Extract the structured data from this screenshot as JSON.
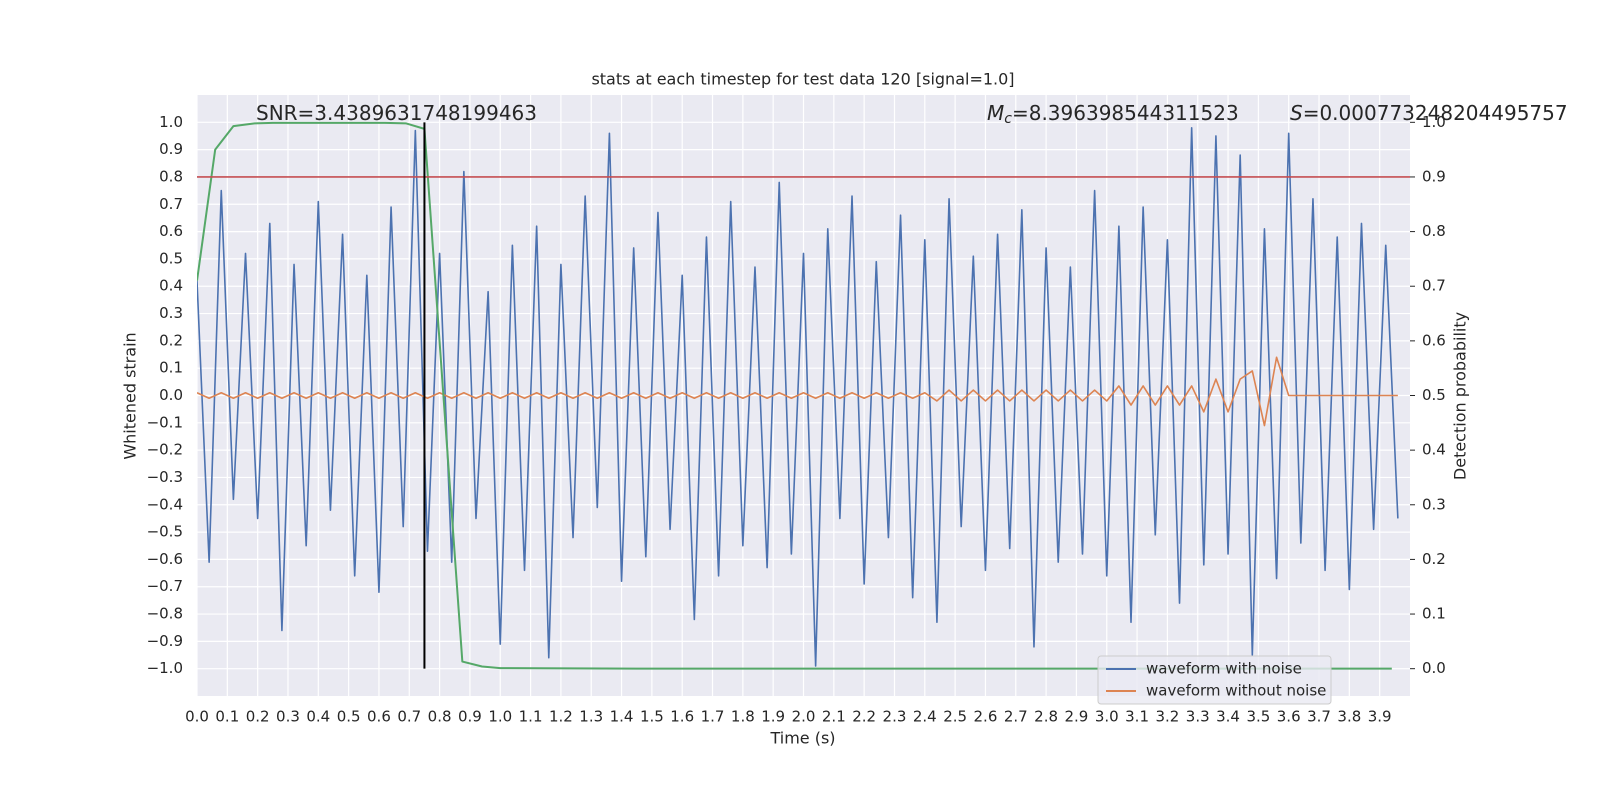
{
  "chart_data": {
    "type": "line",
    "title": "stats at each timestep for test data 120 [signal=1.0]",
    "x_label": "Time (s)",
    "y_label": "Whitened strain",
    "y2_label": "Detection probability",
    "annotations": [
      {
        "text": "SNR=3.4389631748199463"
      },
      {
        "symbol": "M",
        "subscript": "c",
        "text": "=8.396398544311523"
      },
      {
        "symbol": "S",
        "text": "=0.000773248204495757"
      }
    ],
    "x": [
      0,
      0.04,
      0.08,
      0.12,
      0.16,
      0.2,
      0.24,
      0.28,
      0.32,
      0.36,
      0.4,
      0.44,
      0.48,
      0.52,
      0.56,
      0.6,
      0.64,
      0.68,
      0.72,
      0.76,
      0.8,
      0.84,
      0.88,
      0.92,
      0.96,
      1.0,
      1.04,
      1.08,
      1.12,
      1.16,
      1.2,
      1.24,
      1.28,
      1.32,
      1.36,
      1.4,
      1.44,
      1.48,
      1.52,
      1.56,
      1.6,
      1.64,
      1.68,
      1.72,
      1.76,
      1.8,
      1.84,
      1.88,
      1.92,
      1.96,
      2.0,
      2.04,
      2.08,
      2.12,
      2.16,
      2.2,
      2.24,
      2.28,
      2.32,
      2.36,
      2.4,
      2.44,
      2.48,
      2.52,
      2.56,
      2.6,
      2.64,
      2.68,
      2.72,
      2.76,
      2.8,
      2.84,
      2.88,
      2.92,
      2.96,
      3.0,
      3.04,
      3.08,
      3.12,
      3.16,
      3.2,
      3.24,
      3.28,
      3.32,
      3.36,
      3.4,
      3.44,
      3.48,
      3.52,
      3.56,
      3.6,
      3.64,
      3.68,
      3.72,
      3.76,
      3.8,
      3.84,
      3.88,
      3.92,
      3.96
    ],
    "series": [
      {
        "name": "waveform with noise",
        "color": "#4c72b0",
        "values": [
          0.42,
          -0.61,
          0.75,
          -0.38,
          0.52,
          -0.45,
          0.63,
          -0.86,
          0.48,
          -0.55,
          0.71,
          -0.42,
          0.59,
          -0.66,
          0.44,
          -0.72,
          0.69,
          -0.48,
          0.97,
          -0.57,
          0.52,
          -0.61,
          0.82,
          -0.45,
          0.38,
          -0.91,
          0.55,
          -0.64,
          0.62,
          -0.96,
          0.48,
          -0.52,
          0.73,
          -0.41,
          0.96,
          -0.68,
          0.54,
          -0.59,
          0.67,
          -0.49,
          0.44,
          -0.82,
          0.58,
          -0.66,
          0.71,
          -0.55,
          0.47,
          -0.63,
          0.78,
          -0.58,
          0.52,
          -0.99,
          0.61,
          -0.45,
          0.73,
          -0.69,
          0.49,
          -0.52,
          0.66,
          -0.74,
          0.57,
          -0.83,
          0.72,
          -0.48,
          0.51,
          -0.64,
          0.59,
          -0.56,
          0.68,
          -0.92,
          0.54,
          -0.61,
          0.47,
          -0.58,
          0.75,
          -0.66,
          0.62,
          -0.83,
          0.69,
          -0.51,
          0.57,
          -0.76,
          0.98,
          -0.62,
          0.95,
          -0.58,
          0.88,
          -0.95,
          0.61,
          -0.67,
          0.96,
          -0.54,
          0.72,
          -0.64,
          0.58,
          -0.71,
          0.63,
          -0.49,
          0.55,
          -0.45
        ]
      },
      {
        "name": "waveform without noise",
        "color": "#dd8452",
        "values": [
          0.01,
          -0.01,
          0.01,
          -0.01,
          0.01,
          -0.01,
          0.01,
          -0.01,
          0.01,
          -0.01,
          0.01,
          -0.01,
          0.01,
          -0.01,
          0.01,
          -0.01,
          0.01,
          -0.01,
          0.01,
          -0.01,
          0.01,
          -0.01,
          0.01,
          -0.01,
          0.01,
          -0.01,
          0.01,
          -0.01,
          0.01,
          -0.01,
          0.01,
          -0.01,
          0.01,
          -0.01,
          0.01,
          -0.01,
          0.01,
          -0.01,
          0.01,
          -0.01,
          0.01,
          -0.01,
          0.01,
          -0.01,
          0.01,
          -0.01,
          0.01,
          -0.01,
          0.01,
          -0.01,
          0.01,
          -0.01,
          0.01,
          -0.01,
          0.01,
          -0.01,
          0.01,
          -0.01,
          0.01,
          -0.01,
          0.01,
          -0.02,
          0.02,
          -0.02,
          0.02,
          -0.02,
          0.02,
          -0.02,
          0.02,
          -0.02,
          0.02,
          -0.02,
          0.02,
          -0.02,
          0.02,
          -0.02,
          0.035,
          -0.035,
          0.035,
          -0.035,
          0.035,
          -0.035,
          0.035,
          -0.06,
          0.06,
          -0.06,
          0.06,
          0.09,
          -0.11,
          0.14,
          0,
          0,
          0,
          0,
          0,
          0,
          0,
          0,
          0,
          0
        ]
      },
      {
        "color": "#55a868",
        "axis": "y2",
        "x": [
          0,
          0.06,
          0.12,
          0.19,
          0.25,
          0.31,
          0.38,
          0.44,
          0.5,
          0.56,
          0.62,
          0.69,
          0.75,
          0.875,
          0.94,
          1.0,
          1.5,
          2.0,
          2.5,
          3.0,
          3.5,
          3.94
        ],
        "values": [
          0.71,
          0.95,
          0.993,
          0.998,
          0.999,
          0.999,
          0.999,
          0.999,
          0.999,
          0.999,
          0.999,
          0.998,
          0.988,
          0.013,
          0.004,
          0.001,
          0.0,
          0.0,
          0.0,
          0.0,
          0.0,
          0.0
        ]
      }
    ],
    "hline": {
      "value": 0.9,
      "axis": "y2",
      "color": "#c44e52"
    },
    "vline": {
      "x": 0.75,
      "ymin": -1.0,
      "ymax": 1.0,
      "color": "#000000"
    },
    "xlim": [
      0,
      4.0
    ],
    "ylim": [
      -1.1,
      1.1
    ],
    "y2lim": [
      -0.05,
      1.05
    ],
    "xticks": [
      {
        "value": 0,
        "label": "0.0"
      },
      {
        "value": 0.1,
        "label": "0.1"
      },
      {
        "value": 0.2,
        "label": "0.2"
      },
      {
        "value": 0.3,
        "label": "0.3"
      },
      {
        "value": 0.4,
        "label": "0.4"
      },
      {
        "value": 0.5,
        "label": "0.5"
      },
      {
        "value": 0.6,
        "label": "0.6"
      },
      {
        "value": 0.7,
        "label": "0.7"
      },
      {
        "value": 0.8,
        "label": "0.8"
      },
      {
        "value": 0.9,
        "label": "0.9"
      },
      {
        "value": 1.0,
        "label": "1.0"
      },
      {
        "value": 1.1,
        "label": "1.1"
      },
      {
        "value": 1.2,
        "label": "1.2"
      },
      {
        "value": 1.3,
        "label": "1.3"
      },
      {
        "value": 1.4,
        "label": "1.4"
      },
      {
        "value": 1.5,
        "label": "1.5"
      },
      {
        "value": 1.6,
        "label": "1.6"
      },
      {
        "value": 1.7,
        "label": "1.7"
      },
      {
        "value": 1.8,
        "label": "1.8"
      },
      {
        "value": 1.9,
        "label": "1.9"
      },
      {
        "value": 2.0,
        "label": "2.0"
      },
      {
        "value": 2.1,
        "label": "2.1"
      },
      {
        "value": 2.2,
        "label": "2.2"
      },
      {
        "value": 2.3,
        "label": "2.3"
      },
      {
        "value": 2.4,
        "label": "2.4"
      },
      {
        "value": 2.5,
        "label": "2.5"
      },
      {
        "value": 2.6,
        "label": "2.6"
      },
      {
        "value": 2.7,
        "label": "2.7"
      },
      {
        "value": 2.8,
        "label": "2.8"
      },
      {
        "value": 2.9,
        "label": "2.9"
      },
      {
        "value": 3.0,
        "label": "3.0"
      },
      {
        "value": 3.1,
        "label": "3.1"
      },
      {
        "value": 3.2,
        "label": "3.2"
      },
      {
        "value": 3.3,
        "label": "3.3"
      },
      {
        "value": 3.4,
        "label": "3.4"
      },
      {
        "value": 3.5,
        "label": "3.5"
      },
      {
        "value": 3.6,
        "label": "3.6"
      },
      {
        "value": 3.7,
        "label": "3.7"
      },
      {
        "value": 3.8,
        "label": "3.8"
      },
      {
        "value": 3.9,
        "label": "3.9"
      }
    ],
    "yticks": [
      {
        "value": -1.0,
        "label": "−1.0"
      },
      {
        "value": -0.9,
        "label": "−0.9"
      },
      {
        "value": -0.8,
        "label": "−0.8"
      },
      {
        "value": -0.7,
        "label": "−0.7"
      },
      {
        "value": -0.6,
        "label": "−0.6"
      },
      {
        "value": -0.5,
        "label": "−0.5"
      },
      {
        "value": -0.4,
        "label": "−0.4"
      },
      {
        "value": -0.3,
        "label": "−0.3"
      },
      {
        "value": -0.2,
        "label": "−0.2"
      },
      {
        "value": -0.1,
        "label": "−0.1"
      },
      {
        "value": 0,
        "label": "0.0"
      },
      {
        "value": 0.1,
        "label": "0.1"
      },
      {
        "value": 0.2,
        "label": "0.2"
      },
      {
        "value": 0.3,
        "label": "0.3"
      },
      {
        "value": 0.4,
        "label": "0.4"
      },
      {
        "value": 0.5,
        "label": "0.5"
      },
      {
        "value": 0.6,
        "label": "0.6"
      },
      {
        "value": 0.7,
        "label": "0.7"
      },
      {
        "value": 0.8,
        "label": "0.8"
      },
      {
        "value": 0.9,
        "label": "0.9"
      },
      {
        "value": 1.0,
        "label": "1.0"
      }
    ],
    "y2ticks": [
      {
        "value": 0,
        "label": "0.0"
      },
      {
        "value": 0.1,
        "label": "0.1"
      },
      {
        "value": 0.2,
        "label": "0.2"
      },
      {
        "value": 0.3,
        "label": "0.3"
      },
      {
        "value": 0.4,
        "label": "0.4"
      },
      {
        "value": 0.5,
        "label": "0.5"
      },
      {
        "value": 0.6,
        "label": "0.6"
      },
      {
        "value": 0.7,
        "label": "0.7"
      },
      {
        "value": 0.8,
        "label": "0.8"
      },
      {
        "value": 0.9,
        "label": "0.9"
      },
      {
        "value": 1.0,
        "label": "1.0"
      }
    ],
    "grid": true,
    "legend": "lower right"
  }
}
